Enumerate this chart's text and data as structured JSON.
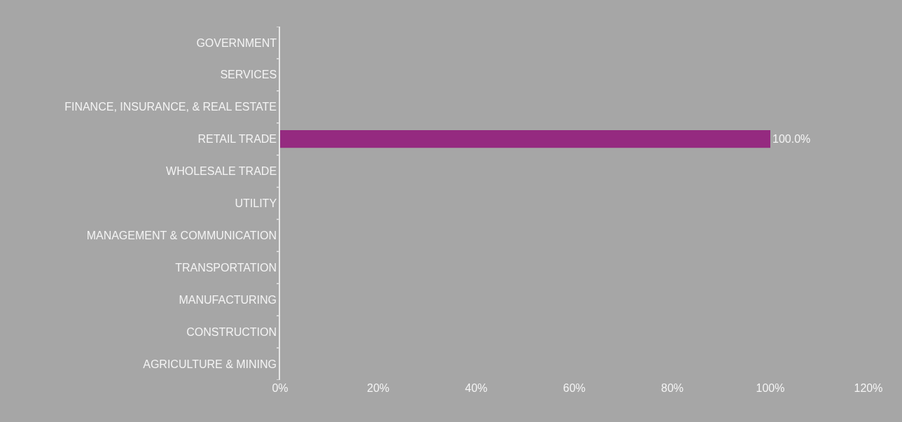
{
  "chart_data": {
    "type": "bar",
    "orientation": "horizontal",
    "categories": [
      "GOVERNMENT",
      "SERVICES",
      "FINANCE, INSURANCE, & REAL ESTATE",
      "RETAIL TRADE",
      "WHOLESALE TRADE",
      "UTILITY",
      "MANAGEMENT & COMMUNICATION",
      "TRANSPORTATION",
      "MANUFACTURING",
      "CONSTRUCTION",
      "AGRICULTURE & MINING"
    ],
    "values": [
      0,
      0,
      0,
      100,
      0,
      0,
      0,
      0,
      0,
      0,
      0
    ],
    "value_labels": [
      null,
      null,
      null,
      "100.0%",
      null,
      null,
      null,
      null,
      null,
      null,
      null
    ],
    "color": "#952a80",
    "xlim": [
      0,
      120
    ],
    "xticks": [
      {
        "value": 0,
        "label": "0%"
      },
      {
        "value": 20,
        "label": "20%"
      },
      {
        "value": 40,
        "label": "40%"
      },
      {
        "value": 60,
        "label": "60%"
      },
      {
        "value": 80,
        "label": "80%"
      },
      {
        "value": 100,
        "label": "100%"
      },
      {
        "value": 120,
        "label": "120%"
      }
    ],
    "grid": false,
    "legend": false
  }
}
